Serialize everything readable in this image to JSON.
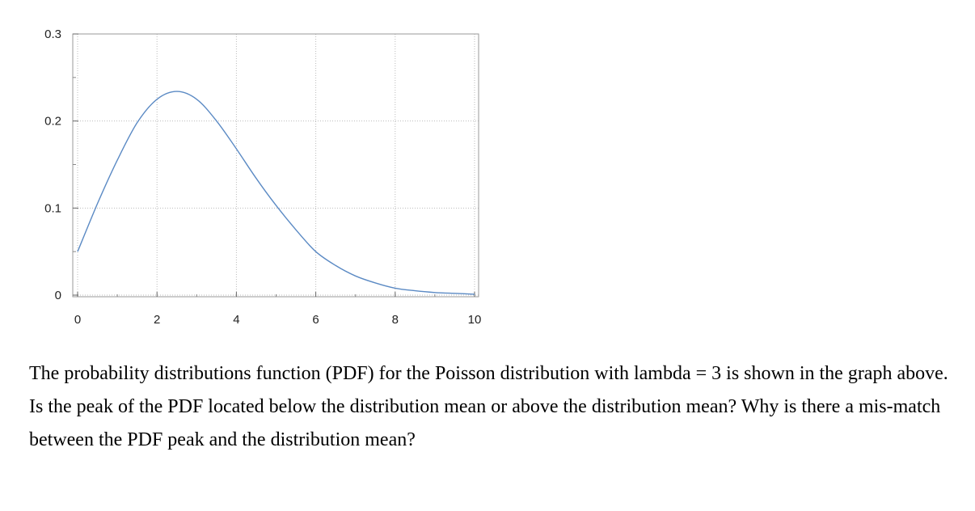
{
  "chart_data": {
    "type": "line",
    "title": "",
    "xlabel": "",
    "ylabel": "",
    "xlim": [
      0,
      10
    ],
    "ylim": [
      0,
      0.3
    ],
    "grid": true,
    "x_ticks": [
      "0",
      "2",
      "4",
      "6",
      "8",
      "10"
    ],
    "y_ticks": [
      "0",
      "0.1",
      "0.2",
      "0.3"
    ],
    "line_color": "#5b8ac4",
    "series": [
      {
        "x": [
          0,
          0.5,
          1,
          1.5,
          2,
          2.5,
          3,
          3.5,
          4,
          4.5,
          5,
          5.5,
          6,
          6.5,
          7,
          7.5,
          8,
          8.5,
          9,
          9.5,
          10
        ],
        "values": [
          0.05,
          0.105,
          0.155,
          0.198,
          0.225,
          0.234,
          0.225,
          0.2,
          0.168,
          0.134,
          0.103,
          0.075,
          0.05,
          0.034,
          0.022,
          0.014,
          0.008,
          0.005,
          0.003,
          0.002,
          0.001
        ]
      }
    ]
  },
  "question": "The probability distributions function (PDF) for the Poisson distribution with lambda = 3 is shown in the graph above. Is the peak of the PDF located below the distribution mean or above the distribution mean? Why is there a mis-match between the PDF peak and the distribution mean?"
}
